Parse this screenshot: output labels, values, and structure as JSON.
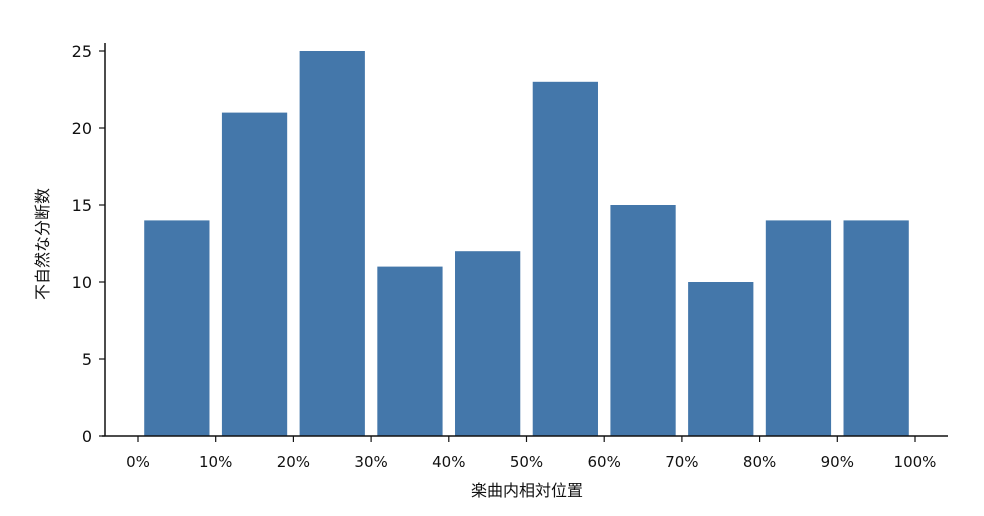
{
  "chart_data": {
    "type": "bar",
    "categories": [
      "0-10%",
      "10-20%",
      "20-30%",
      "30-40%",
      "40-50%",
      "50-60%",
      "60-70%",
      "70-80%",
      "80-90%",
      "90-100%"
    ],
    "bin_edges": [
      0,
      10,
      20,
      30,
      40,
      50,
      60,
      70,
      80,
      90,
      100
    ],
    "values": [
      14,
      21,
      25,
      11,
      12,
      23,
      15,
      10,
      14,
      14
    ],
    "xlabel": "楽曲内相対位置",
    "ylabel": "不自然な分断数",
    "x_ticks": [
      "0%",
      "10%",
      "20%",
      "30%",
      "40%",
      "50%",
      "60%",
      "70%",
      "80%",
      "90%",
      "100%"
    ],
    "y_ticks": [
      "0",
      "5",
      "10",
      "15",
      "20",
      "25"
    ],
    "ylim": [
      0,
      25
    ],
    "xlim": [
      -5,
      105
    ],
    "grid": false,
    "bar_color": "#4477aa"
  }
}
